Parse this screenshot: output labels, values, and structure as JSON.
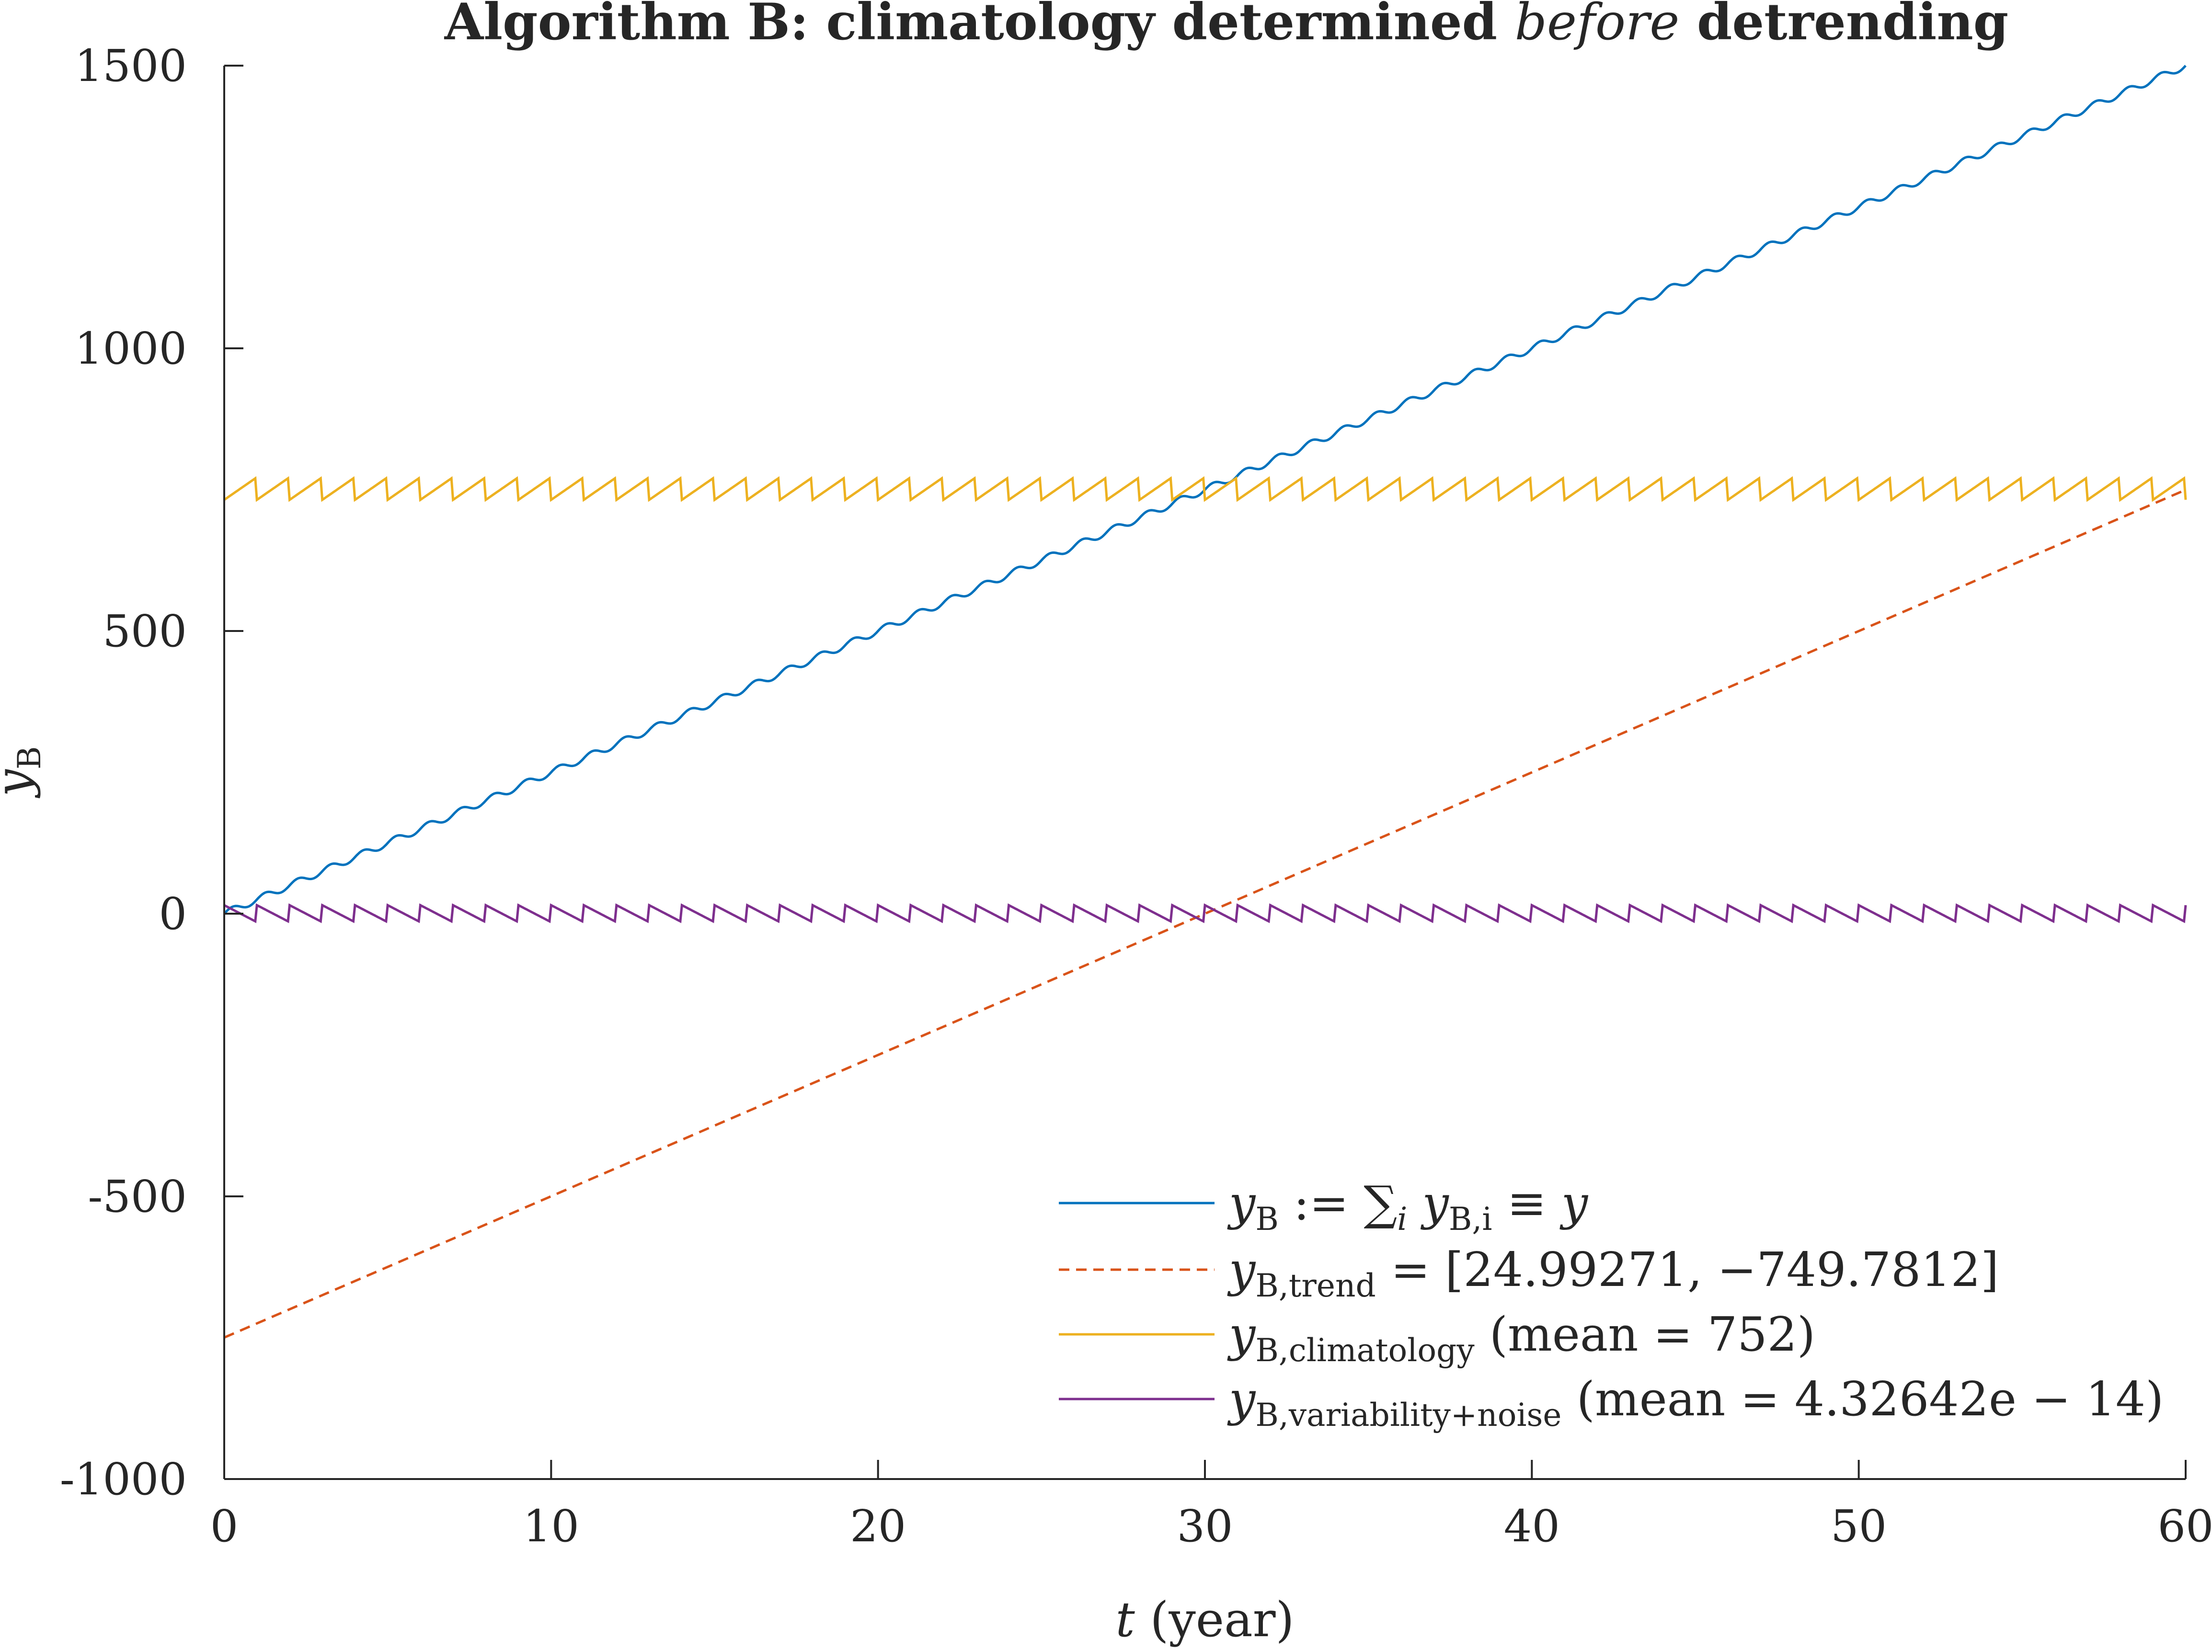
{
  "chart_data": {
    "type": "line",
    "title": {
      "prefix": "Algorithm B: climatology determined ",
      "emphasis": "before",
      "suffix": " detrending"
    },
    "xlabel": {
      "var": "t",
      "unit": " (year)"
    },
    "ylabel": {
      "base": "y",
      "sub": "B"
    },
    "xlim": [
      0,
      60
    ],
    "ylim": [
      -1000,
      1500
    ],
    "xticks": [
      0,
      10,
      20,
      30,
      40,
      50,
      60
    ],
    "xtick_labels": [
      "0",
      "10",
      "20",
      "30",
      "40",
      "50",
      "60"
    ],
    "yticks": [
      -1000,
      -500,
      0,
      500,
      1000,
      1500
    ],
    "ytick_labels": [
      "-1000",
      "-500",
      "0",
      "500",
      "1000",
      "1500"
    ],
    "grid": false,
    "legend_position": "bottom-right",
    "series": [
      {
        "key": "total",
        "color": "#0072BD",
        "dash": "solid",
        "form": "linear_plus_sawtooth",
        "slope": 25.0,
        "intercept": 0,
        "sawtooth_amplitude": 20,
        "period": 1,
        "legend": {
          "base": "y",
          "sub": "B",
          "rest": " := ∑",
          "rest_sub": "i",
          "rest2": " y",
          "rest2_sub": "B,i",
          "rest3": " ≡ y"
        }
      },
      {
        "key": "trend",
        "color": "#D95319",
        "dash": "dashed",
        "form": "linear",
        "slope": 24.99271,
        "intercept": -749.7812,
        "legend": {
          "base": "y",
          "sub": "B,trend",
          "rest": " = [24.99271, −749.7812]"
        }
      },
      {
        "key": "climatology",
        "color": "#EDB120",
        "dash": "solid",
        "form": "sawtooth",
        "mean": 752,
        "sawtooth_amplitude": 20,
        "period": 1,
        "legend": {
          "base": "y",
          "sub": "B,climatology",
          "rest": "  (mean = 752)"
        }
      },
      {
        "key": "variability",
        "color": "#7E2F8E",
        "dash": "solid",
        "form": "sawtooth_reverse",
        "mean": 0,
        "sawtooth_amplitude": 15,
        "period": 1,
        "legend": {
          "base": "y",
          "sub": "B,variability+noise",
          "rest": " (mean = 4.32642e − 14)"
        }
      }
    ]
  }
}
